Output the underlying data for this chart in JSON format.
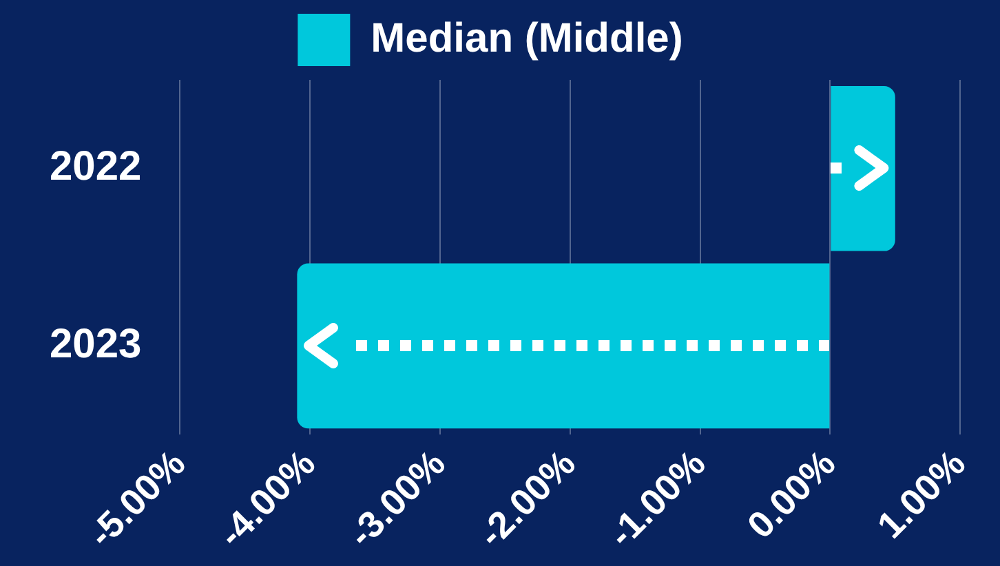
{
  "chart_data": {
    "type": "bar",
    "orientation": "horizontal",
    "categories": [
      "2022",
      "2023"
    ],
    "series": [
      {
        "name": "Median (Middle)",
        "color": "#00c8dc",
        "values": [
          0.5,
          -4.1
        ]
      }
    ],
    "xlim": [
      -5,
      1
    ],
    "xticks": [
      {
        "value": -5,
        "label": "-5.00%"
      },
      {
        "value": -4,
        "label": "-4.00%"
      },
      {
        "value": -3,
        "label": "-3.00%"
      },
      {
        "value": -2,
        "label": "-2.00%"
      },
      {
        "value": -1,
        "label": "-1.00%"
      },
      {
        "value": 0,
        "label": "0.00%"
      },
      {
        "value": 1,
        "label": "1.00%"
      }
    ],
    "grid": "x",
    "legend": "top"
  }
}
